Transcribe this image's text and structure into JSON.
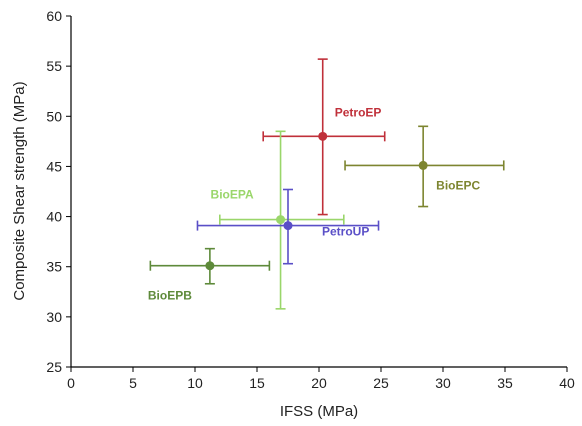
{
  "chart_data": {
    "type": "scatter",
    "xlabel": "IFSS (MPa)",
    "ylabel": "Composite Shear strength (MPa)",
    "xlim": [
      0,
      40
    ],
    "ylim": [
      25,
      60
    ],
    "xticks": [
      0,
      5,
      10,
      15,
      20,
      25,
      30,
      35,
      40
    ],
    "yticks": [
      25,
      30,
      35,
      40,
      45,
      50,
      55,
      60
    ],
    "grid": false,
    "legend": "none",
    "points": [
      {
        "label": "PetroEP",
        "x": 20.3,
        "y": 48.0,
        "x_err": [
          15.5,
          25.3
        ],
        "y_err": [
          40.2,
          55.7
        ],
        "color": "#c0303a"
      },
      {
        "label": "BioEPC",
        "x": 28.4,
        "y": 45.1,
        "x_err": [
          22.1,
          34.9
        ],
        "y_err": [
          41.0,
          49.0
        ],
        "color": "#7d8530"
      },
      {
        "label": "BioEPA",
        "x": 16.9,
        "y": 39.7,
        "x_err": [
          12.0,
          22.0
        ],
        "y_err": [
          30.8,
          48.5
        ],
        "color": "#9ad66a"
      },
      {
        "label": "PetroUP",
        "x": 17.5,
        "y": 39.1,
        "x_err": [
          10.2,
          24.8
        ],
        "y_err": [
          35.3,
          42.7
        ],
        "color": "#5a4fc7"
      },
      {
        "label": "BioEPB",
        "x": 11.2,
        "y": 35.1,
        "x_err": [
          6.4,
          16.0
        ],
        "y_err": [
          33.3,
          36.8
        ],
        "color": "#5e8a3a"
      }
    ]
  }
}
